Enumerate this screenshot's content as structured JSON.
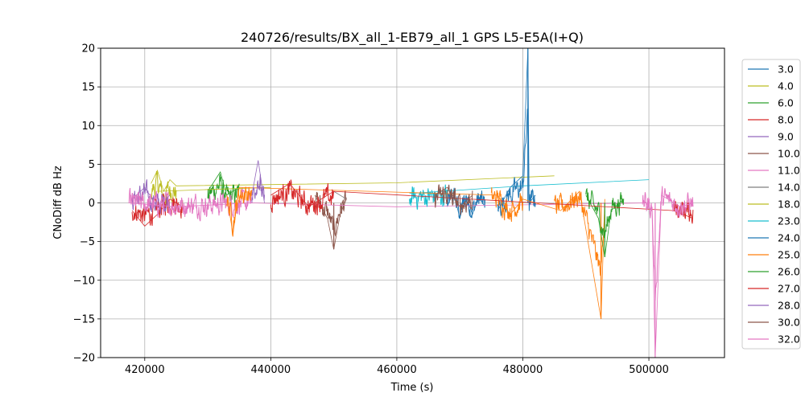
{
  "chart_data": {
    "type": "line",
    "title": "240726/results/BX_all_1-EB79_all_1 GPS L5-E5A(I+Q)",
    "xlabel": "Time (s)",
    "ylabel": "CNoDiff dB Hz",
    "xlim": [
      413000,
      512000
    ],
    "ylim": [
      -20,
      20
    ],
    "xticks": [
      "420000",
      "440000",
      "460000",
      "480000",
      "500000"
    ],
    "yticks": [
      "20",
      "15",
      "10",
      "5",
      "0",
      "−5",
      "−10",
      "−15",
      "−20"
    ],
    "grid": true,
    "legend_position": "right-outside",
    "series": [
      {
        "name": "3.0",
        "color": "#1f77b4",
        "segments": [
          [
            468000,
            474000
          ]
        ],
        "points": [
          [
            468000,
            -0.5
          ],
          [
            469000,
            1.5
          ],
          [
            470000,
            -2
          ],
          [
            471000,
            1
          ],
          [
            472000,
            -1.5
          ],
          [
            473000,
            0.8
          ],
          [
            474000,
            -0.5
          ]
        ]
      },
      {
        "name": "4.0",
        "color": "#bcbd22",
        "segments": [
          [
            421000,
            425000
          ]
        ],
        "points": [
          [
            421000,
            2.5
          ],
          [
            422000,
            4.2
          ],
          [
            423000,
            1.5
          ],
          [
            424000,
            3
          ],
          [
            425000,
            2.2
          ],
          [
            460000,
            2.6
          ],
          [
            485000,
            3.5
          ]
        ]
      },
      {
        "name": "6.0",
        "color": "#2ca02c",
        "segments": [
          [
            430000,
            435000
          ]
        ],
        "points": [
          [
            430000,
            1.5
          ],
          [
            432000,
            4
          ],
          [
            433000,
            1
          ],
          [
            435000,
            2
          ]
        ]
      },
      {
        "name": "8.0",
        "color": "#d62728",
        "segments": [
          [
            418000,
            426000
          ]
        ],
        "points": [
          [
            418000,
            -1
          ],
          [
            420000,
            -3
          ],
          [
            422000,
            -1.5
          ],
          [
            424000,
            0.5
          ],
          [
            426000,
            -0.5
          ]
        ]
      },
      {
        "name": "9.0",
        "color": "#9467bd",
        "segments": [
          [
            418000,
            424000
          ]
        ],
        "points": [
          [
            418000,
            0.5
          ],
          [
            420000,
            2
          ],
          [
            422000,
            -0.5
          ],
          [
            424000,
            1
          ]
        ]
      },
      {
        "name": "10.0",
        "color": "#8c564b",
        "segments": [
          [
            447000,
            452000
          ]
        ],
        "points": [
          [
            447000,
            1
          ],
          [
            449000,
            -2
          ],
          [
            450000,
            -6
          ],
          [
            451000,
            -1.5
          ],
          [
            452000,
            0.5
          ]
        ]
      },
      {
        "name": "11.0",
        "color": "#e377c2",
        "segments": [
          [
            417500,
            437000
          ]
        ],
        "points": [
          [
            417500,
            0
          ],
          [
            425000,
            -0.5
          ],
          [
            437000,
            0
          ],
          [
            460000,
            -0.5
          ],
          [
            500000,
            0
          ]
        ]
      },
      {
        "name": "14.0",
        "color": "#7f7f7f",
        "segments": [],
        "points": [
          [
            450000,
            1.5
          ],
          [
            452000,
            0.5
          ]
        ]
      },
      {
        "name": "18.0",
        "color": "#bcbd22",
        "segments": [],
        "points": [
          [
            422000,
            1.5
          ],
          [
            440000,
            2
          ]
        ]
      },
      {
        "name": "23.0",
        "color": "#17becf",
        "segments": [
          [
            462000,
            468000
          ]
        ],
        "points": [
          [
            462000,
            1.2
          ],
          [
            480000,
            2.2
          ],
          [
            500000,
            3
          ]
        ]
      },
      {
        "name": "24.0",
        "color": "#1f77b4",
        "segments": [
          [
            476000,
            482000
          ]
        ],
        "points": [
          [
            476000,
            -1
          ],
          [
            478000,
            2
          ],
          [
            480000,
            3.5
          ],
          [
            480800,
            20
          ],
          [
            481000,
            0
          ],
          [
            482000,
            1
          ]
        ]
      },
      {
        "name": "25.0",
        "color": "#ff7f0e",
        "segments": [
          [
            433000,
            437000
          ],
          [
            475000,
            480000
          ],
          [
            485000,
            493000
          ]
        ],
        "points": [
          [
            433000,
            1
          ],
          [
            434000,
            -4
          ],
          [
            435000,
            2
          ],
          [
            476000,
            1
          ],
          [
            478000,
            -1.5
          ],
          [
            480000,
            0.5
          ],
          [
            486000,
            -1
          ],
          [
            489000,
            1.5
          ],
          [
            492400,
            -15
          ],
          [
            493000,
            0.5
          ]
        ]
      },
      {
        "name": "26.0",
        "color": "#2ca02c",
        "segments": [
          [
            490000,
            496000
          ]
        ],
        "points": [
          [
            490000,
            1
          ],
          [
            492000,
            -2
          ],
          [
            493000,
            -7
          ],
          [
            494000,
            -1
          ],
          [
            496000,
            0.5
          ]
        ]
      },
      {
        "name": "27.0",
        "color": "#d62728",
        "segments": [
          [
            440000,
            450000
          ],
          [
            504000,
            507000
          ]
        ],
        "points": [
          [
            440000,
            1
          ],
          [
            443000,
            2.5
          ],
          [
            446000,
            -0.5
          ],
          [
            450000,
            1.5
          ],
          [
            504000,
            -1
          ],
          [
            507000,
            -2
          ]
        ]
      },
      {
        "name": "28.0",
        "color": "#9467bd",
        "segments": [
          [
            437000,
            439000
          ]
        ],
        "points": [
          [
            437000,
            1
          ],
          [
            438000,
            5.5
          ],
          [
            439000,
            0
          ]
        ]
      },
      {
        "name": "30.0",
        "color": "#8c564b",
        "segments": [
          [
            466000,
            472000
          ]
        ],
        "points": [
          [
            466000,
            1
          ],
          [
            468000,
            2
          ],
          [
            470000,
            -0.5
          ],
          [
            472000,
            1
          ]
        ]
      },
      {
        "name": "32.0",
        "color": "#e377c2",
        "segments": [
          [
            499000,
            507000
          ]
        ],
        "points": [
          [
            499000,
            0.5
          ],
          [
            500500,
            -1
          ],
          [
            501000,
            -20
          ],
          [
            502000,
            1
          ],
          [
            505000,
            -0.5
          ],
          [
            507000,
            0
          ]
        ]
      }
    ]
  }
}
